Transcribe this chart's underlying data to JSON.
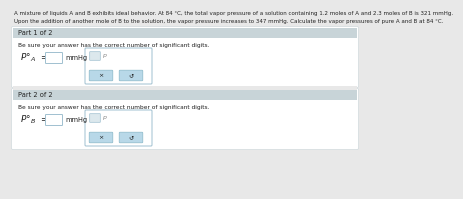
{
  "bg_color": "#e8e8e8",
  "white": "#ffffff",
  "panel_bg": "#dce8ed",
  "header_bg": "#c8d4d8",
  "input_bg": "#ffffff",
  "input_border": "#a0c0d0",
  "btn_bg": "#b8d8e8",
  "btn_border": "#88b8c8",
  "text_color": "#222222",
  "light_text": "#888888",
  "problem_line1": "A mixture of liquids A and B exhibits ideal behavior. At 84 °C, the total vapor pressure of a solution containing 1.2 moles of A and 2.3 moles of B is 321 mmHg.",
  "problem_line2": "Upon the addition of another mole of B to the solution, the vapor pressure increases to 347 mmHg. Calculate the vapor pressures of pure A and B at 84 °C.",
  "part1_header": "Part 1 of 2",
  "part2_header": "Part 2 of 2",
  "sig_fig_text": "Be sure your answer has the correct number of significant digits.",
  "x_btn": "×",
  "refresh_btn": "↺",
  "mmhg": "mmHg"
}
